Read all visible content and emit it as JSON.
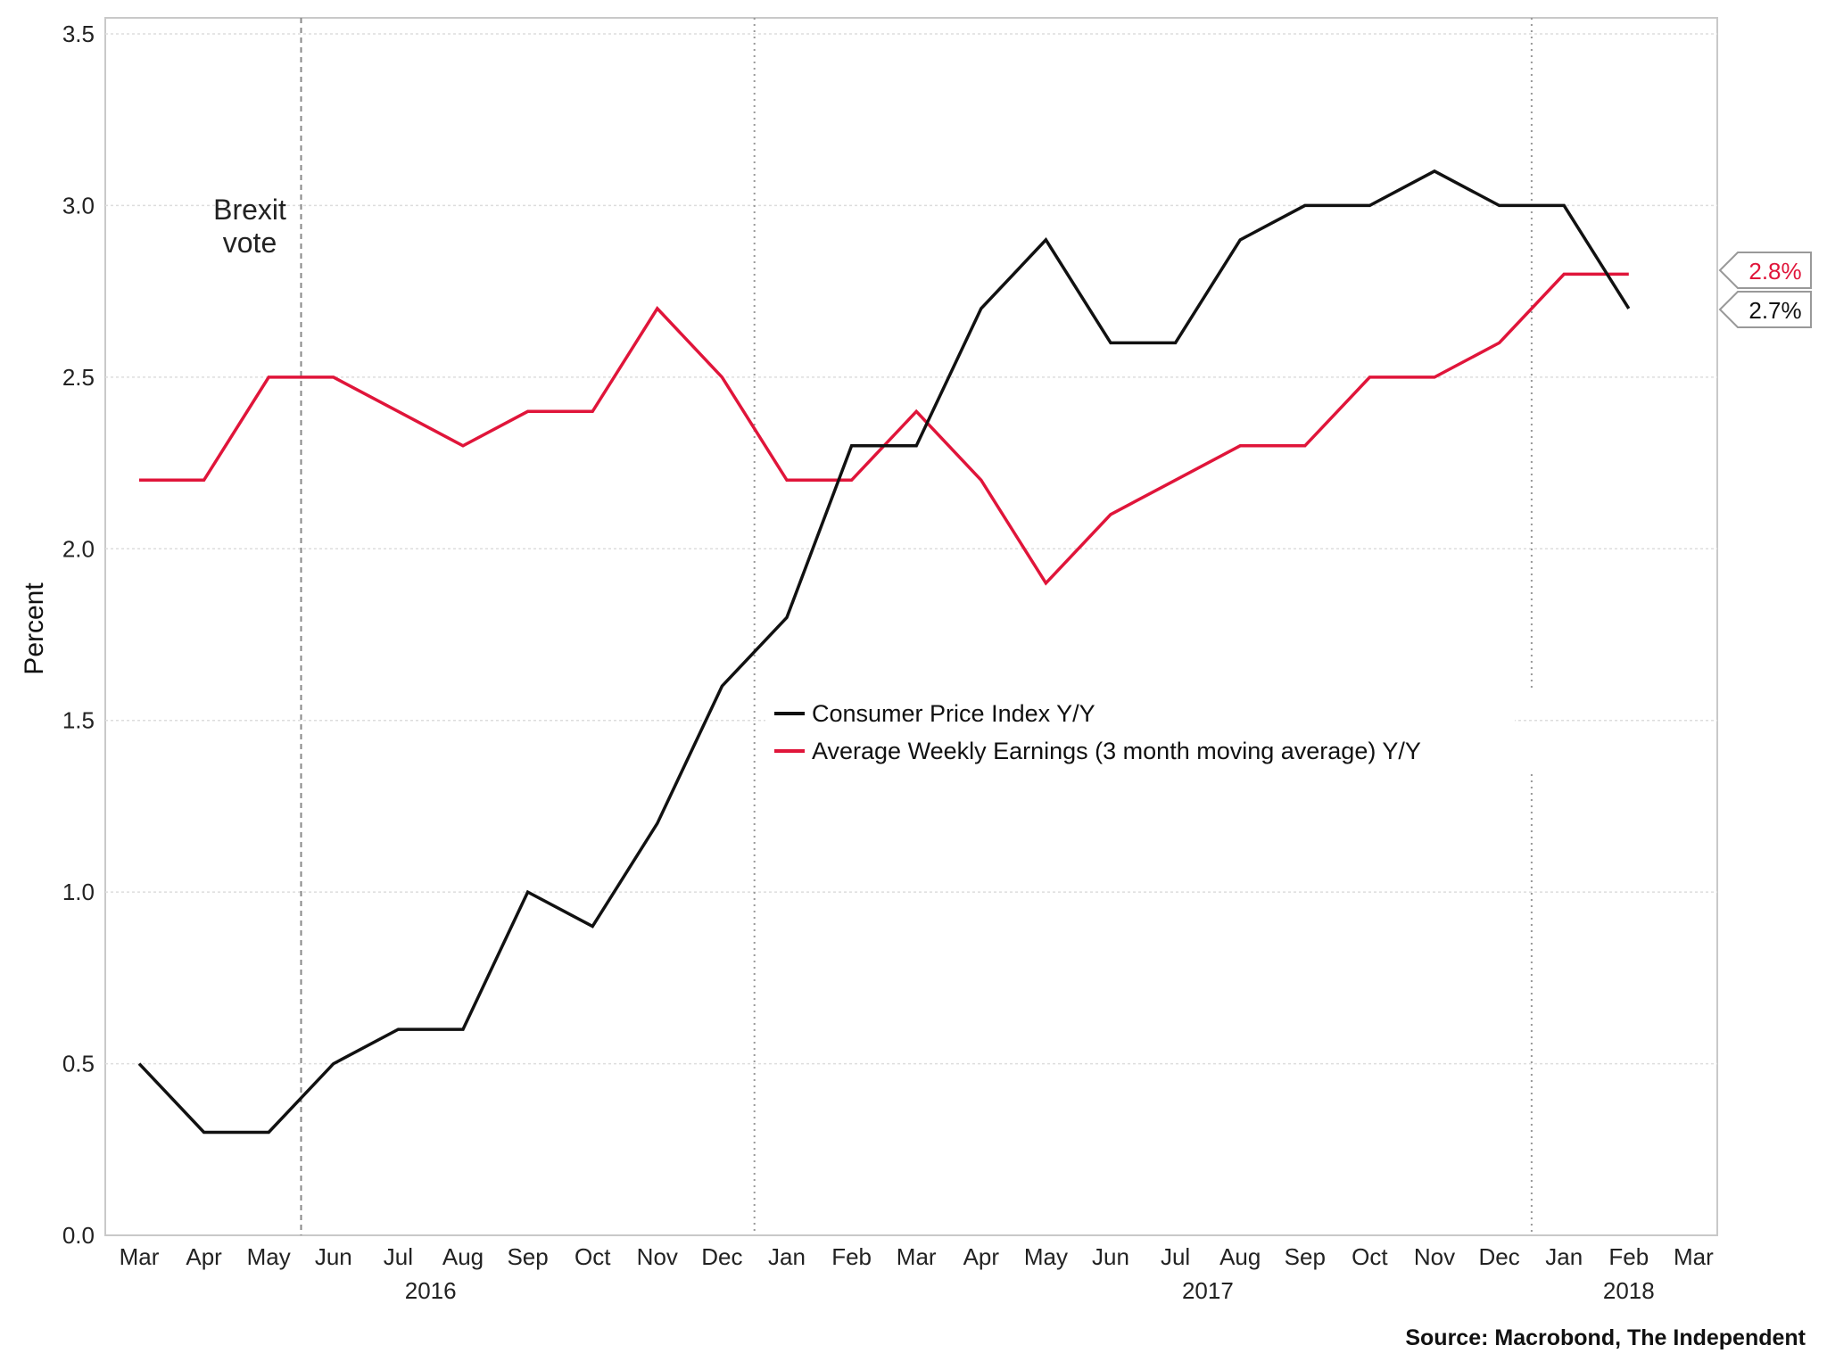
{
  "chart_data": {
    "type": "line",
    "x": [
      "2016-03",
      "2016-04",
      "2016-05",
      "2016-06",
      "2016-07",
      "2016-08",
      "2016-09",
      "2016-10",
      "2016-11",
      "2016-12",
      "2017-01",
      "2017-02",
      "2017-03",
      "2017-04",
      "2017-05",
      "2017-06",
      "2017-07",
      "2017-08",
      "2017-09",
      "2017-10",
      "2017-11",
      "2017-12",
      "2018-01",
      "2018-02"
    ],
    "x_tick_labels": [
      "Mar",
      "Apr",
      "May",
      "Jun",
      "Jul",
      "Aug",
      "Sep",
      "Oct",
      "Nov",
      "Dec",
      "Jan",
      "Feb",
      "Mar",
      "Apr",
      "May",
      "Jun",
      "Jul",
      "Aug",
      "Sep",
      "Oct",
      "Nov",
      "Dec",
      "Jan",
      "Feb",
      "Mar"
    ],
    "year_labels": [
      "2016",
      "2017",
      "2018"
    ],
    "ylabel": "Percent",
    "ylim": [
      0,
      3.5
    ],
    "y_ticks": [
      "0.0",
      "0.5",
      "1.0",
      "1.5",
      "2.0",
      "2.5",
      "3.0",
      "3.5"
    ],
    "grid": true,
    "legend_position": "center",
    "series": [
      {
        "name": "Consumer Price Index Y/Y",
        "color": "#111111",
        "values": [
          0.5,
          0.3,
          0.3,
          0.5,
          0.6,
          0.6,
          1.0,
          0.9,
          1.2,
          1.6,
          1.8,
          2.3,
          2.3,
          2.7,
          2.9,
          2.6,
          2.6,
          2.9,
          3.0,
          3.0,
          3.1,
          3.0,
          3.0,
          2.7
        ],
        "end_label": "2.7%"
      },
      {
        "name": "Average Weekly Earnings (3 month moving average) Y/Y",
        "color": "#e0153a",
        "values": [
          2.2,
          2.2,
          2.5,
          2.5,
          2.4,
          2.3,
          2.4,
          2.4,
          2.7,
          2.5,
          2.2,
          2.2,
          2.4,
          2.2,
          1.9,
          2.1,
          2.2,
          2.3,
          2.3,
          2.5,
          2.5,
          2.6,
          2.8,
          2.8
        ],
        "end_label": "2.8%"
      }
    ],
    "annotations": [
      {
        "text_lines": [
          "Brexit",
          "vote"
        ],
        "at": "2016-06-23"
      }
    ],
    "source": "Source: Macrobond, The Independent"
  }
}
